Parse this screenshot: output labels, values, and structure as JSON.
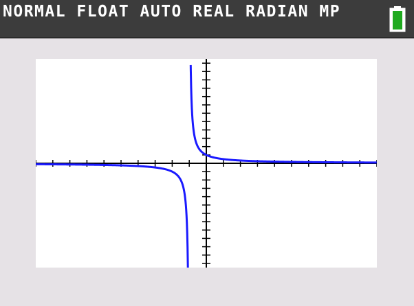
{
  "status_bar": {
    "text": "NORMAL FLOAT AUTO REAL RADIAN MP",
    "battery_icon": "battery-icon",
    "battery_color": "#1faa1f"
  },
  "graph": {
    "curve_color": "#1a1aff",
    "axis_color": "#000000",
    "background": "#ffffff"
  }
}
